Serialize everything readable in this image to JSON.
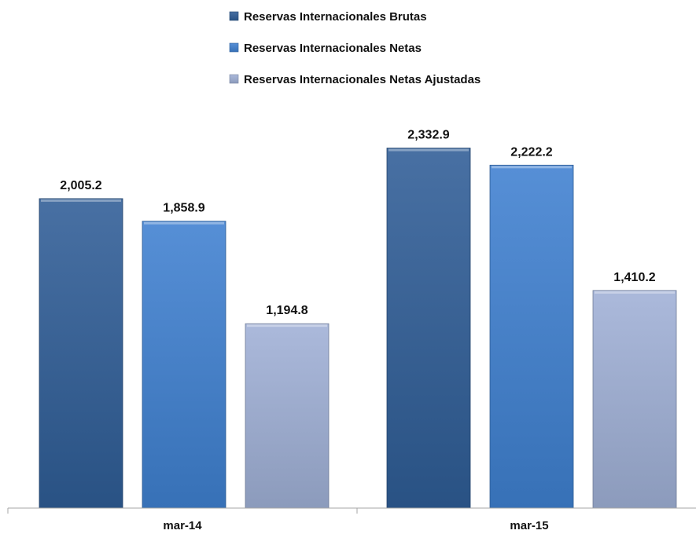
{
  "chart_data": {
    "type": "bar",
    "categories": [
      "mar-14",
      "mar-15"
    ],
    "series": [
      {
        "name": "Reservas Internacionales Brutas",
        "values": [
          2005.2,
          2332.9
        ],
        "labels": [
          "2,005.2",
          "2,332.9"
        ],
        "color": "#2f5d96"
      },
      {
        "name": "Reservas Internacionales Netas",
        "values": [
          1858.9,
          2222.2
        ],
        "labels": [
          "1,858.9",
          "2,222.2"
        ],
        "color": "#3f80d0"
      },
      {
        "name": "Reservas Internacionales Netas Ajustadas",
        "values": [
          1194.8,
          1410.2
        ],
        "labels": [
          "1,194.8",
          "1,410.2"
        ],
        "color": "#9fb0d6"
      }
    ],
    "ylim": [
      0,
      2600
    ],
    "grid": false,
    "legend_position": "top-center"
  }
}
